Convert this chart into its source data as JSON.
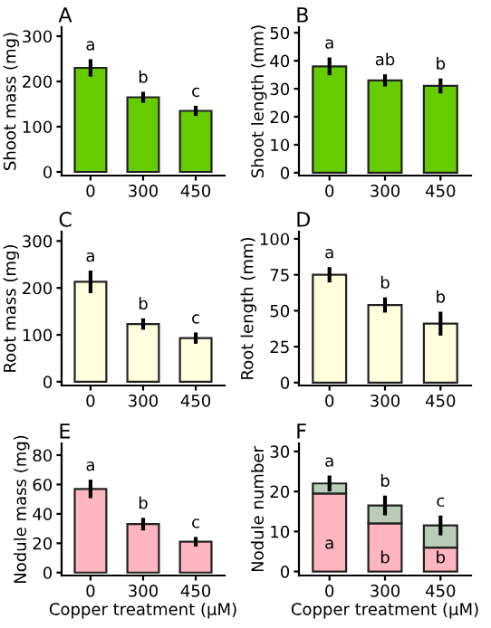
{
  "chart_data": [
    {
      "type": "bar",
      "title": "A",
      "ylabel": "Shoot mass (mg)",
      "categories": [
        "0",
        "300",
        "450"
      ],
      "values": [
        230,
        165,
        135
      ],
      "errors": [
        15,
        8,
        7
      ],
      "color": "#66cc00",
      "ylim": [
        -8,
        320
      ],
      "yticks": [
        0,
        100,
        200,
        300
      ],
      "grid": false,
      "annotations": [
        "a",
        "b",
        "c"
      ]
    },
    {
      "type": "bar",
      "title": "B",
      "ylabel": "Shoot length (mm)",
      "categories": [
        "0",
        "300",
        "450"
      ],
      "values": [
        38,
        33,
        31
      ],
      "errors": [
        2.5,
        1.5,
        2
      ],
      "color": "#66cc00",
      "ylim": [
        -1,
        52
      ],
      "yticks": [
        0,
        10,
        20,
        30,
        40,
        50
      ],
      "grid": false,
      "annotations": [
        "a",
        "ab",
        "b"
      ]
    },
    {
      "type": "bar",
      "title": "C",
      "ylabel": "Root mass (mg)",
      "categories": [
        "0",
        "300",
        "450"
      ],
      "values": [
        213,
        123,
        93
      ],
      "errors": [
        20,
        8,
        8
      ],
      "color": "#ffffdd",
      "ylim": [
        -8,
        320
      ],
      "yticks": [
        0,
        100,
        200,
        300
      ],
      "grid": false,
      "annotations": [
        "a",
        "b",
        "c"
      ]
    },
    {
      "type": "bar",
      "title": "D",
      "ylabel": "Root length (mm)",
      "categories": [
        "0",
        "300",
        "450"
      ],
      "values": [
        75,
        54,
        41
      ],
      "errors": [
        4,
        4,
        7
      ],
      "color": "#ffffdd",
      "ylim": [
        -2,
        105
      ],
      "yticks": [
        0,
        25,
        50,
        75,
        100
      ],
      "grid": false,
      "annotations": [
        "a",
        "b",
        "b"
      ]
    },
    {
      "type": "bar",
      "title": "E",
      "ylabel": "Nodule mass (mg)",
      "xlabel": "Copper treatment (µM)",
      "categories": [
        "0",
        "300",
        "450"
      ],
      "values": [
        57,
        33,
        21
      ],
      "errors": [
        5,
        3,
        2
      ],
      "color": "#ffb6c1",
      "ylim": [
        -2,
        88
      ],
      "yticks": [
        0,
        20,
        40,
        60,
        80
      ],
      "grid": false,
      "annotations": [
        "a",
        "b",
        "c"
      ]
    },
    {
      "type": "bar",
      "title": "F",
      "ylabel": "Nodule number",
      "xlabel": "Copper treatment (µM)",
      "categories": [
        "0",
        "300",
        "450"
      ],
      "stacked": true,
      "ylim": [
        -1,
        32
      ],
      "yticks": [
        0,
        10,
        20,
        30
      ],
      "grid": false,
      "series": [
        {
          "color": "#ffb6c1",
          "values": [
            19.5,
            12,
            6
          ]
        },
        {
          "color": "#b8ccb8",
          "values": [
            2.5,
            4.5,
            5.5
          ],
          "errors": [
            1.5,
            2,
            2
          ]
        }
      ],
      "annotations": [
        "a",
        "b",
        "c",
        "a",
        "b",
        "b"
      ]
    }
  ]
}
